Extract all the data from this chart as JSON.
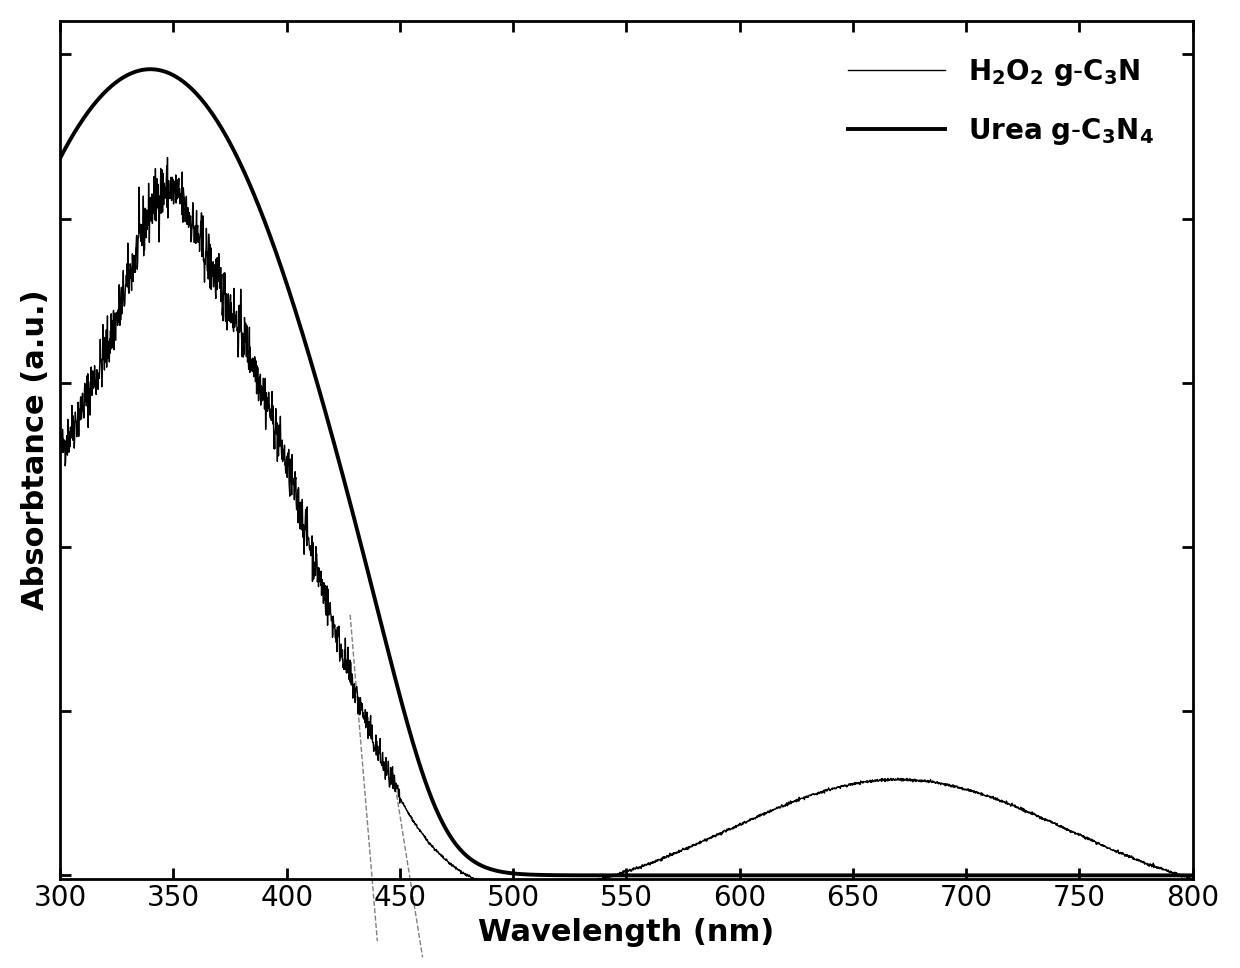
{
  "xmin": 300,
  "xmax": 800,
  "xlabel": "Wavelength (nm)",
  "ylabel": "Absorbtance (a.u.)",
  "xticks": [
    300,
    350,
    400,
    450,
    500,
    550,
    600,
    650,
    700,
    750,
    800
  ],
  "background_color": "#ffffff",
  "axis_fontsize": 22,
  "tick_fontsize": 20,
  "legend_fontsize": 20
}
